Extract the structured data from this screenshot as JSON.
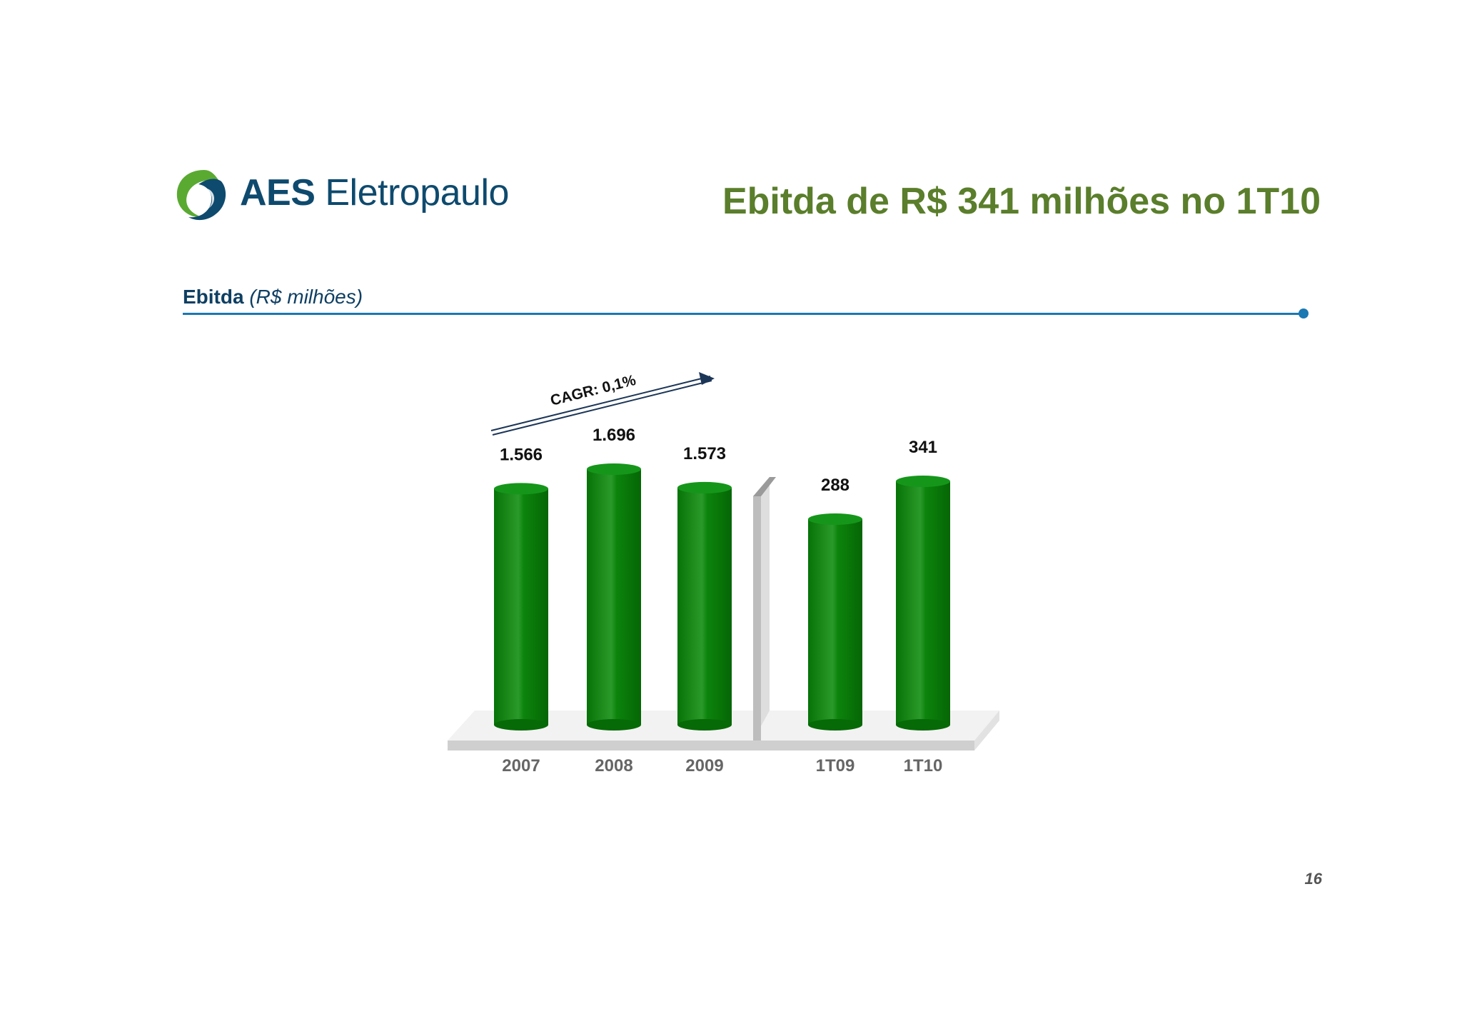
{
  "logo": {
    "text_bold": "AES",
    "text_regular": " Eletropaulo"
  },
  "title": "Ebitda de R$ 341 milhões no 1T10",
  "section": {
    "label_bold": "Ebitda",
    "label_italic": "(R$ milhões)"
  },
  "chart_data": {
    "type": "bar",
    "title": "",
    "xlabel": "",
    "ylabel": "",
    "categories": [
      "2007",
      "2008",
      "2009",
      "1T09",
      "1T10"
    ],
    "values": [
      1566,
      1696,
      1573,
      288,
      341
    ],
    "value_labels": [
      "1.566",
      "1.696",
      "1.573",
      "288",
      "341"
    ],
    "groups": [
      {
        "categories": [
          "2007",
          "2008",
          "2009"
        ],
        "scale_max": 1800
      },
      {
        "categories": [
          "1T09",
          "1T10"
        ],
        "scale_max": 380
      }
    ],
    "annotation": "CAGR: 0,1%",
    "bar_color": "#0b7f0b",
    "grid": false,
    "legend": "none"
  },
  "page_number": "16"
}
